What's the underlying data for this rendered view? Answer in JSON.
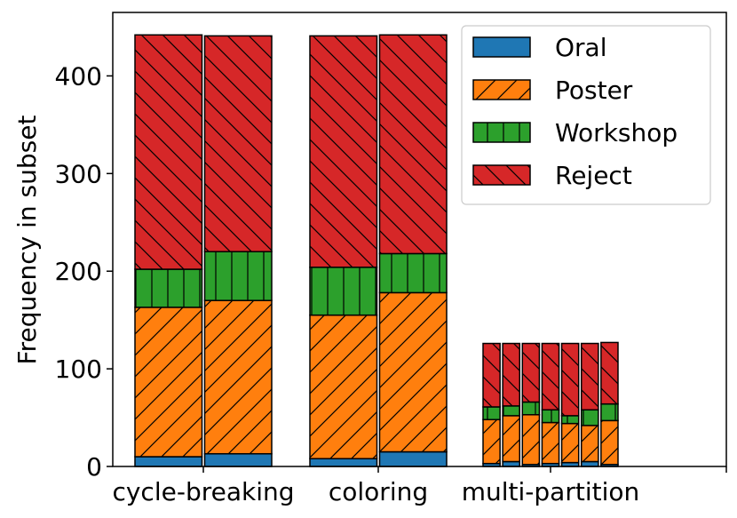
{
  "chart_data": {
    "type": "bar",
    "stacked": true,
    "ylabel": "Frequency in subset",
    "xlabel": "",
    "title": "",
    "ylim": [
      0,
      465
    ],
    "yticks": [
      0,
      100,
      200,
      300,
      400
    ],
    "categories": [
      "cycle-breaking",
      "coloring",
      "multi-partition"
    ],
    "legend_position": "top-right",
    "series": [
      {
        "name": "Oral",
        "color": "#1f77b4",
        "hatch": "none"
      },
      {
        "name": "Poster",
        "color": "#ff7f0e",
        "hatch": "forward"
      },
      {
        "name": "Workshop",
        "color": "#2ca02c",
        "hatch": "vertical"
      },
      {
        "name": "Reject",
        "color": "#d62728",
        "hatch": "backward"
      }
    ],
    "groups": [
      {
        "category": "cycle-breaking",
        "bars": [
          {
            "Oral": 10,
            "Poster": 153,
            "Workshop": 39,
            "Reject": 240
          },
          {
            "Oral": 13,
            "Poster": 157,
            "Workshop": 50,
            "Reject": 221
          }
        ]
      },
      {
        "category": "coloring",
        "bars": [
          {
            "Oral": 8,
            "Poster": 147,
            "Workshop": 49,
            "Reject": 237
          },
          {
            "Oral": 15,
            "Poster": 163,
            "Workshop": 40,
            "Reject": 224
          }
        ]
      },
      {
        "category": "multi-partition",
        "bars": [
          {
            "Oral": 3,
            "Poster": 45,
            "Workshop": 13,
            "Reject": 65
          },
          {
            "Oral": 5,
            "Poster": 47,
            "Workshop": 10,
            "Reject": 64
          },
          {
            "Oral": 2,
            "Poster": 51,
            "Workshop": 13,
            "Reject": 60
          },
          {
            "Oral": 3,
            "Poster": 42,
            "Workshop": 13,
            "Reject": 68
          },
          {
            "Oral": 4,
            "Poster": 40,
            "Workshop": 8,
            "Reject": 74
          },
          {
            "Oral": 5,
            "Poster": 37,
            "Workshop": 16,
            "Reject": 68
          },
          {
            "Oral": 2,
            "Poster": 45,
            "Workshop": 17,
            "Reject": 63
          }
        ]
      }
    ]
  }
}
